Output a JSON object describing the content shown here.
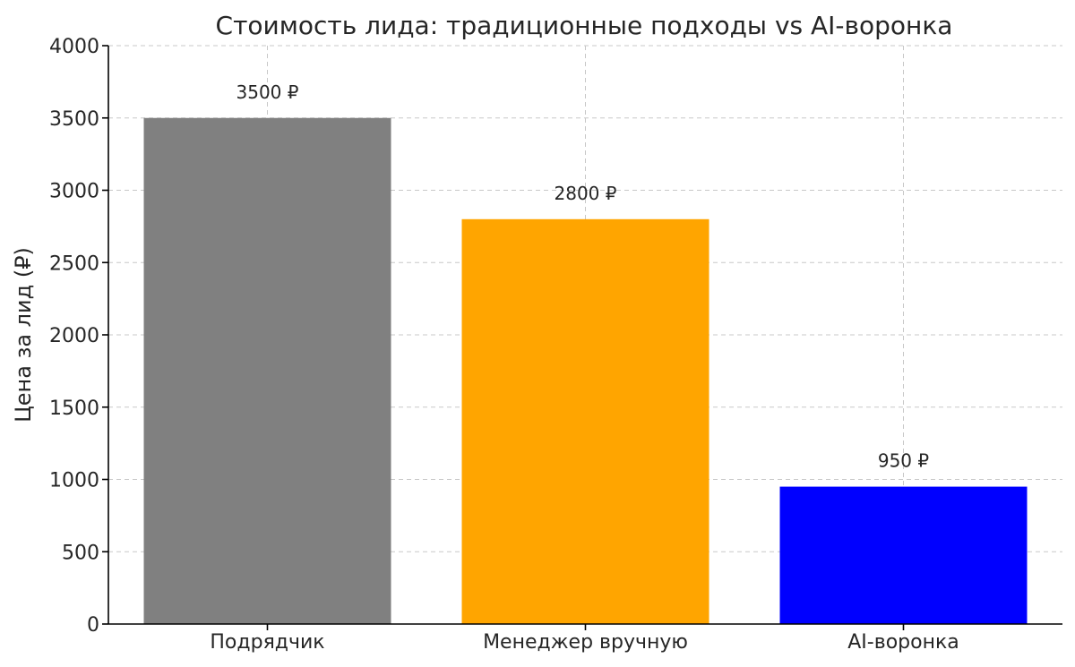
{
  "chart_data": {
    "type": "bar",
    "title": "Стоимость лида: традиционные подходы vs AI-воронка",
    "xlabel": "",
    "ylabel": "Цена за лид (₽)",
    "categories": [
      "Подрядчик",
      "Менеджер вручную",
      "AI-воронка"
    ],
    "values": [
      3500,
      2800,
      950
    ],
    "data_labels": [
      "3500 ₽",
      "2800 ₽",
      "950 ₽"
    ],
    "colors": [
      "#808080",
      "#ffa500",
      "#0000ff"
    ],
    "ylim": [
      0,
      4000
    ],
    "yticks": [
      0,
      500,
      1000,
      1500,
      2000,
      2500,
      3000,
      3500,
      4000
    ],
    "ytick_labels": [
      "0",
      "500",
      "1000",
      "1500",
      "2000",
      "2500",
      "3000",
      "3500",
      "4000"
    ],
    "grid": true
  }
}
